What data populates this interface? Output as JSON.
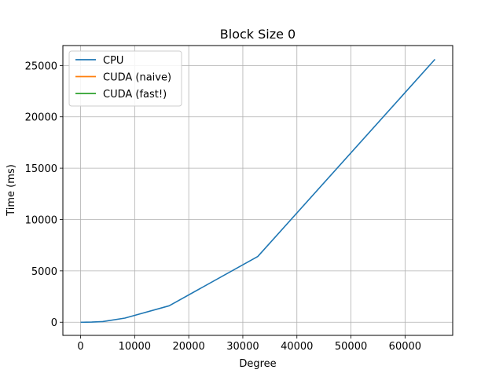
{
  "chart_data": {
    "type": "line",
    "title": "Block Size 0",
    "xlabel": "Degree",
    "ylabel": "Time (ms)",
    "xlim": [
      -3277,
      68813
    ],
    "ylim": [
      -1282,
      26940
    ],
    "xticks": [
      0,
      10000,
      20000,
      30000,
      40000,
      50000,
      60000
    ],
    "yticks": [
      0,
      5000,
      10000,
      15000,
      20000,
      25000
    ],
    "grid": true,
    "legend_position": "upper-left",
    "series": [
      {
        "name": "CPU",
        "color": "#1f77b4",
        "x": [
          2,
          4,
          8,
          16,
          32,
          64,
          128,
          256,
          512,
          1024,
          2048,
          4096,
          8192,
          16384,
          32768,
          65536
        ],
        "y": [
          0,
          0,
          0,
          0,
          0,
          0,
          0,
          0,
          0,
          1,
          10,
          60,
          400,
          1600,
          6400,
          25600
        ]
      },
      {
        "name": "CUDA (naive)",
        "color": "#ff7f0e",
        "x": [],
        "y": []
      },
      {
        "name": "CUDA (fast!)",
        "color": "#2ca02c",
        "x": [],
        "y": []
      }
    ]
  }
}
